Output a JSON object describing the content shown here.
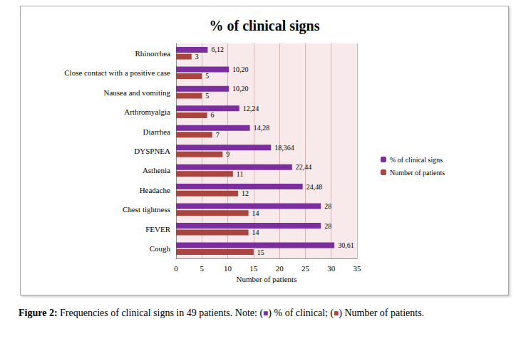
{
  "chart_data": {
    "type": "bar",
    "orientation": "horizontal",
    "title": "% of clinical signs",
    "x_label": "Number of patients",
    "categories": [
      "Cough",
      "FEVER",
      "Chest tightness",
      "Headache",
      "Asthenia",
      "DYSPNEA",
      "Diarrhea",
      "Arthromyalgia",
      "Nausea and vomiting",
      "Close contact with a positive case",
      "Rhinorrhea"
    ],
    "series": [
      {
        "name": "% of clinical signs",
        "color": "#7b2f9e",
        "values": [
          30.61,
          28,
          28,
          24.48,
          22.44,
          18.364,
          14.28,
          12.24,
          10.2,
          10.2,
          6.12
        ],
        "value_labels": [
          "30,61",
          "28",
          "28",
          "24,48",
          "22,44",
          "18,364",
          "14,28",
          "12,24",
          "10,20",
          "10,20",
          "6,12"
        ]
      },
      {
        "name": "Number of patients",
        "color": "#a9443f",
        "values": [
          15,
          14,
          14,
          12,
          11,
          9,
          7,
          6,
          5,
          5,
          3
        ]
      }
    ],
    "xlim": [
      0,
      35
    ],
    "xticks": [
      0,
      5,
      10,
      15,
      20,
      25,
      30,
      35
    ],
    "grid": true,
    "legend": "right",
    "data_labels": true,
    "caption": "Figure 2: Frequencies of clinical signs in 49 patients. Note: (■) % of clinical; (■) Number of patients."
  }
}
